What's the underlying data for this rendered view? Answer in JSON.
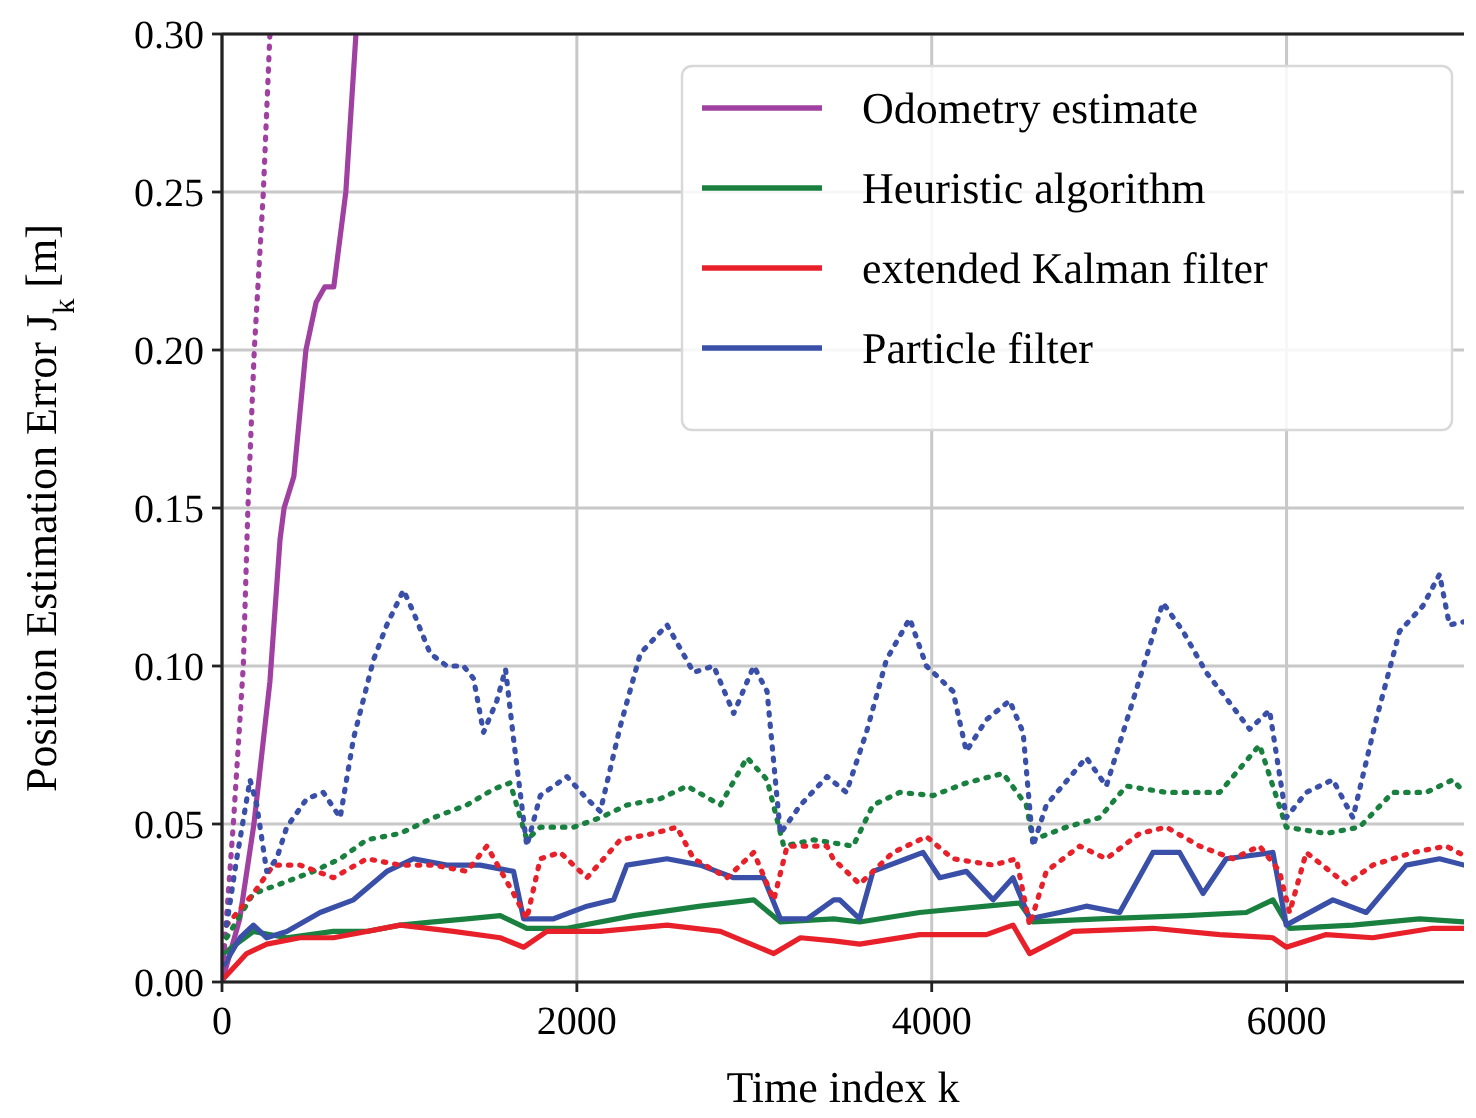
{
  "chart_data": {
    "type": "line",
    "xlabel": "Time index k",
    "ylabel": "Position Estimation Error J$_{k}$ [m]",
    "xlim": [
      0,
      7000
    ],
    "ylim": [
      0,
      0.3
    ],
    "xticks": [
      0,
      2000,
      4000,
      6000
    ],
    "yticks": [
      {
        "value": 0,
        "label": "0.00"
      },
      {
        "value": 0.05,
        "label": "0.05"
      },
      {
        "value": 0.1,
        "label": "0.10"
      },
      {
        "value": 0.15,
        "label": "0.15"
      },
      {
        "value": 0.2,
        "label": "0.20"
      },
      {
        "value": 0.25,
        "label": "0.25"
      },
      {
        "value": 0.3,
        "label": "0.30"
      }
    ],
    "grid": true,
    "legend": "top right",
    "series": [
      {
        "name": "Odometry estimate",
        "color": "#a040a0",
        "line_style": "solid",
        "x": [
          0,
          100,
          180,
          270,
          327,
          350,
          405,
          473,
          530,
          580,
          630,
          698,
          755
        ],
        "values": [
          0,
          0.02,
          0.05,
          0.095,
          0.14,
          0.15,
          0.16,
          0.2,
          0.215,
          0.22,
          0.22,
          0.25,
          0.3
        ]
      },
      {
        "name": "Heuristic algorithm",
        "color": "#1a8040",
        "line_style": "solid",
        "x": [
          8,
          177,
          365,
          628,
          816,
          1004,
          1192,
          1380,
          1568,
          1718,
          1944,
          2320,
          2696,
          2997,
          3147,
          3448,
          3594,
          3932,
          4308,
          4496,
          4571,
          4946,
          5435,
          5773,
          5923,
          6017,
          6374,
          6749,
          7000
        ],
        "values": [
          0.009,
          0.016,
          0.014,
          0.016,
          0.016,
          0.018,
          0.019,
          0.02,
          0.021,
          0.017,
          0.017,
          0.021,
          0.024,
          0.026,
          0.019,
          0.02,
          0.019,
          0.022,
          0.024,
          0.025,
          0.019,
          0.02,
          0.021,
          0.022,
          0.026,
          0.017,
          0.018,
          0.02,
          0.019
        ]
      },
      {
        "name": "extended Kalman filter",
        "color": "#e8202a",
        "line_style": "solid",
        "x": [
          8,
          139,
          252,
          440,
          628,
          1004,
          1305,
          1568,
          1700,
          1831,
          2132,
          2508,
          2809,
          3110,
          3260,
          3448,
          3594,
          3932,
          4308,
          4458,
          4552,
          4796,
          5247,
          5623,
          5923,
          5998,
          6224,
          6486,
          6824,
          7000
        ],
        "values": [
          0.001,
          0.009,
          0.012,
          0.014,
          0.014,
          0.018,
          0.016,
          0.014,
          0.011,
          0.016,
          0.016,
          0.018,
          0.016,
          0.009,
          0.014,
          0.013,
          0.012,
          0.015,
          0.015,
          0.018,
          0.009,
          0.016,
          0.017,
          0.015,
          0.014,
          0.011,
          0.015,
          0.014,
          0.017,
          0.017
        ]
      },
      {
        "name": "Particle filter",
        "color": "#3a50a8",
        "line_style": "solid",
        "x": [
          8,
          102,
          177,
          252,
          365,
          553,
          741,
          929,
          1079,
          1267,
          1455,
          1643,
          1700,
          1869,
          2057,
          2207,
          2282,
          2508,
          2696,
          2884,
          3053,
          3147,
          3298,
          3448,
          3482,
          3594,
          3669,
          3857,
          3951,
          4045,
          4195,
          4346,
          4458,
          4552,
          4721,
          4871,
          5059,
          5247,
          5397,
          5529,
          5660,
          5923,
          5998,
          6261,
          6449,
          6674,
          6862,
          7000
        ],
        "values": [
          0.005,
          0.014,
          0.018,
          0.014,
          0.016,
          0.022,
          0.026,
          0.035,
          0.039,
          0.037,
          0.037,
          0.035,
          0.02,
          0.02,
          0.024,
          0.026,
          0.037,
          0.039,
          0.037,
          0.033,
          0.033,
          0.02,
          0.02,
          0.026,
          0.026,
          0.02,
          0.035,
          0.039,
          0.041,
          0.033,
          0.035,
          0.026,
          0.033,
          0.02,
          0.022,
          0.024,
          0.022,
          0.041,
          0.041,
          0.028,
          0.039,
          0.041,
          0.018,
          0.026,
          0.022,
          0.037,
          0.039,
          0.037
        ]
      },
      {
        "color": "#a040a0",
        "line_style": "dotted",
        "x": [
          0,
          25,
          64,
          120,
          146,
          182,
          233,
          270
        ],
        "values": [
          0,
          0.02,
          0.05,
          0.1,
          0.15,
          0.2,
          0.25,
          0.3
        ]
      },
      {
        "color": "#1a8040",
        "line_style": "dotted",
        "x": [
          26,
          177,
          327,
          515,
          666,
          816,
          1004,
          1192,
          1380,
          1530,
          1624,
          1718,
          1794,
          1982,
          2132,
          2282,
          2470,
          2621,
          2809,
          2959,
          3072,
          3166,
          3335,
          3557,
          3669,
          3820,
          4008,
          4195,
          4402,
          4533,
          4571,
          4759,
          4946,
          5097,
          5322,
          5623,
          5848,
          5998,
          6224,
          6411,
          6599,
          6787,
          6937,
          7000
        ],
        "values": [
          0.014,
          0.028,
          0.031,
          0.035,
          0.039,
          0.045,
          0.047,
          0.052,
          0.056,
          0.061,
          0.063,
          0.045,
          0.049,
          0.049,
          0.052,
          0.056,
          0.058,
          0.062,
          0.056,
          0.071,
          0.064,
          0.043,
          0.045,
          0.043,
          0.056,
          0.06,
          0.059,
          0.063,
          0.066,
          0.056,
          0.045,
          0.049,
          0.052,
          0.062,
          0.06,
          0.06,
          0.075,
          0.049,
          0.047,
          0.049,
          0.06,
          0.06,
          0.064,
          0.06
        ]
      },
      {
        "color": "#e8202a",
        "line_style": "dotted",
        "x": [
          26,
          177,
          290,
          440,
          628,
          816,
          1004,
          1192,
          1380,
          1493,
          1643,
          1718,
          1794,
          1906,
          2057,
          2245,
          2433,
          2564,
          2658,
          2846,
          2997,
          3110,
          3185,
          3410,
          3444,
          3594,
          3782,
          3970,
          4120,
          4346,
          4477,
          4552,
          4646,
          4834,
          4984,
          5172,
          5322,
          5510,
          5698,
          5848,
          5960,
          6017,
          6111,
          6336,
          6486,
          6712,
          6900,
          7000
        ],
        "values": [
          0.018,
          0.028,
          0.037,
          0.037,
          0.033,
          0.039,
          0.037,
          0.037,
          0.035,
          0.043,
          0.028,
          0.02,
          0.039,
          0.041,
          0.033,
          0.045,
          0.047,
          0.049,
          0.039,
          0.033,
          0.041,
          0.026,
          0.043,
          0.043,
          0.039,
          0.031,
          0.041,
          0.046,
          0.039,
          0.037,
          0.039,
          0.018,
          0.035,
          0.043,
          0.039,
          0.047,
          0.049,
          0.043,
          0.039,
          0.043,
          0.035,
          0.022,
          0.041,
          0.031,
          0.037,
          0.041,
          0.043,
          0.04
        ]
      },
      {
        "color": "#3a50a8",
        "line_style": "dotted",
        "x": [
          26,
          83,
          158,
          196,
          252,
          308,
          365,
          478,
          571,
          666,
          741,
          854,
          929,
          1023,
          1079,
          1173,
          1267,
          1361,
          1418,
          1474,
          1549,
          1598,
          1643,
          1718,
          1794,
          1944,
          2057,
          2132,
          2245,
          2358,
          2508,
          2658,
          2771,
          2884,
          2997,
          3072,
          3147,
          3260,
          3410,
          3519,
          3632,
          3745,
          3876,
          3970,
          4120,
          4195,
          4308,
          4439,
          4515,
          4571,
          4646,
          4871,
          4984,
          5134,
          5303,
          5416,
          5547,
          5698,
          5792,
          5904,
          5998,
          6111,
          6261,
          6374,
          6505,
          6637,
          6768,
          6862,
          6918,
          7000
        ],
        "values": [
          0.018,
          0.039,
          0.064,
          0.056,
          0.035,
          0.039,
          0.049,
          0.058,
          0.06,
          0.052,
          0.077,
          0.102,
          0.113,
          0.124,
          0.117,
          0.104,
          0.1,
          0.1,
          0.096,
          0.079,
          0.089,
          0.099,
          0.077,
          0.043,
          0.059,
          0.065,
          0.058,
          0.054,
          0.081,
          0.104,
          0.113,
          0.098,
          0.1,
          0.085,
          0.1,
          0.092,
          0.047,
          0.056,
          0.065,
          0.06,
          0.079,
          0.102,
          0.115,
          0.1,
          0.092,
          0.073,
          0.083,
          0.089,
          0.079,
          0.043,
          0.056,
          0.071,
          0.062,
          0.089,
          0.12,
          0.111,
          0.098,
          0.087,
          0.08,
          0.086,
          0.052,
          0.06,
          0.064,
          0.052,
          0.083,
          0.111,
          0.119,
          0.129,
          0.113,
          0.114
        ]
      }
    ]
  }
}
